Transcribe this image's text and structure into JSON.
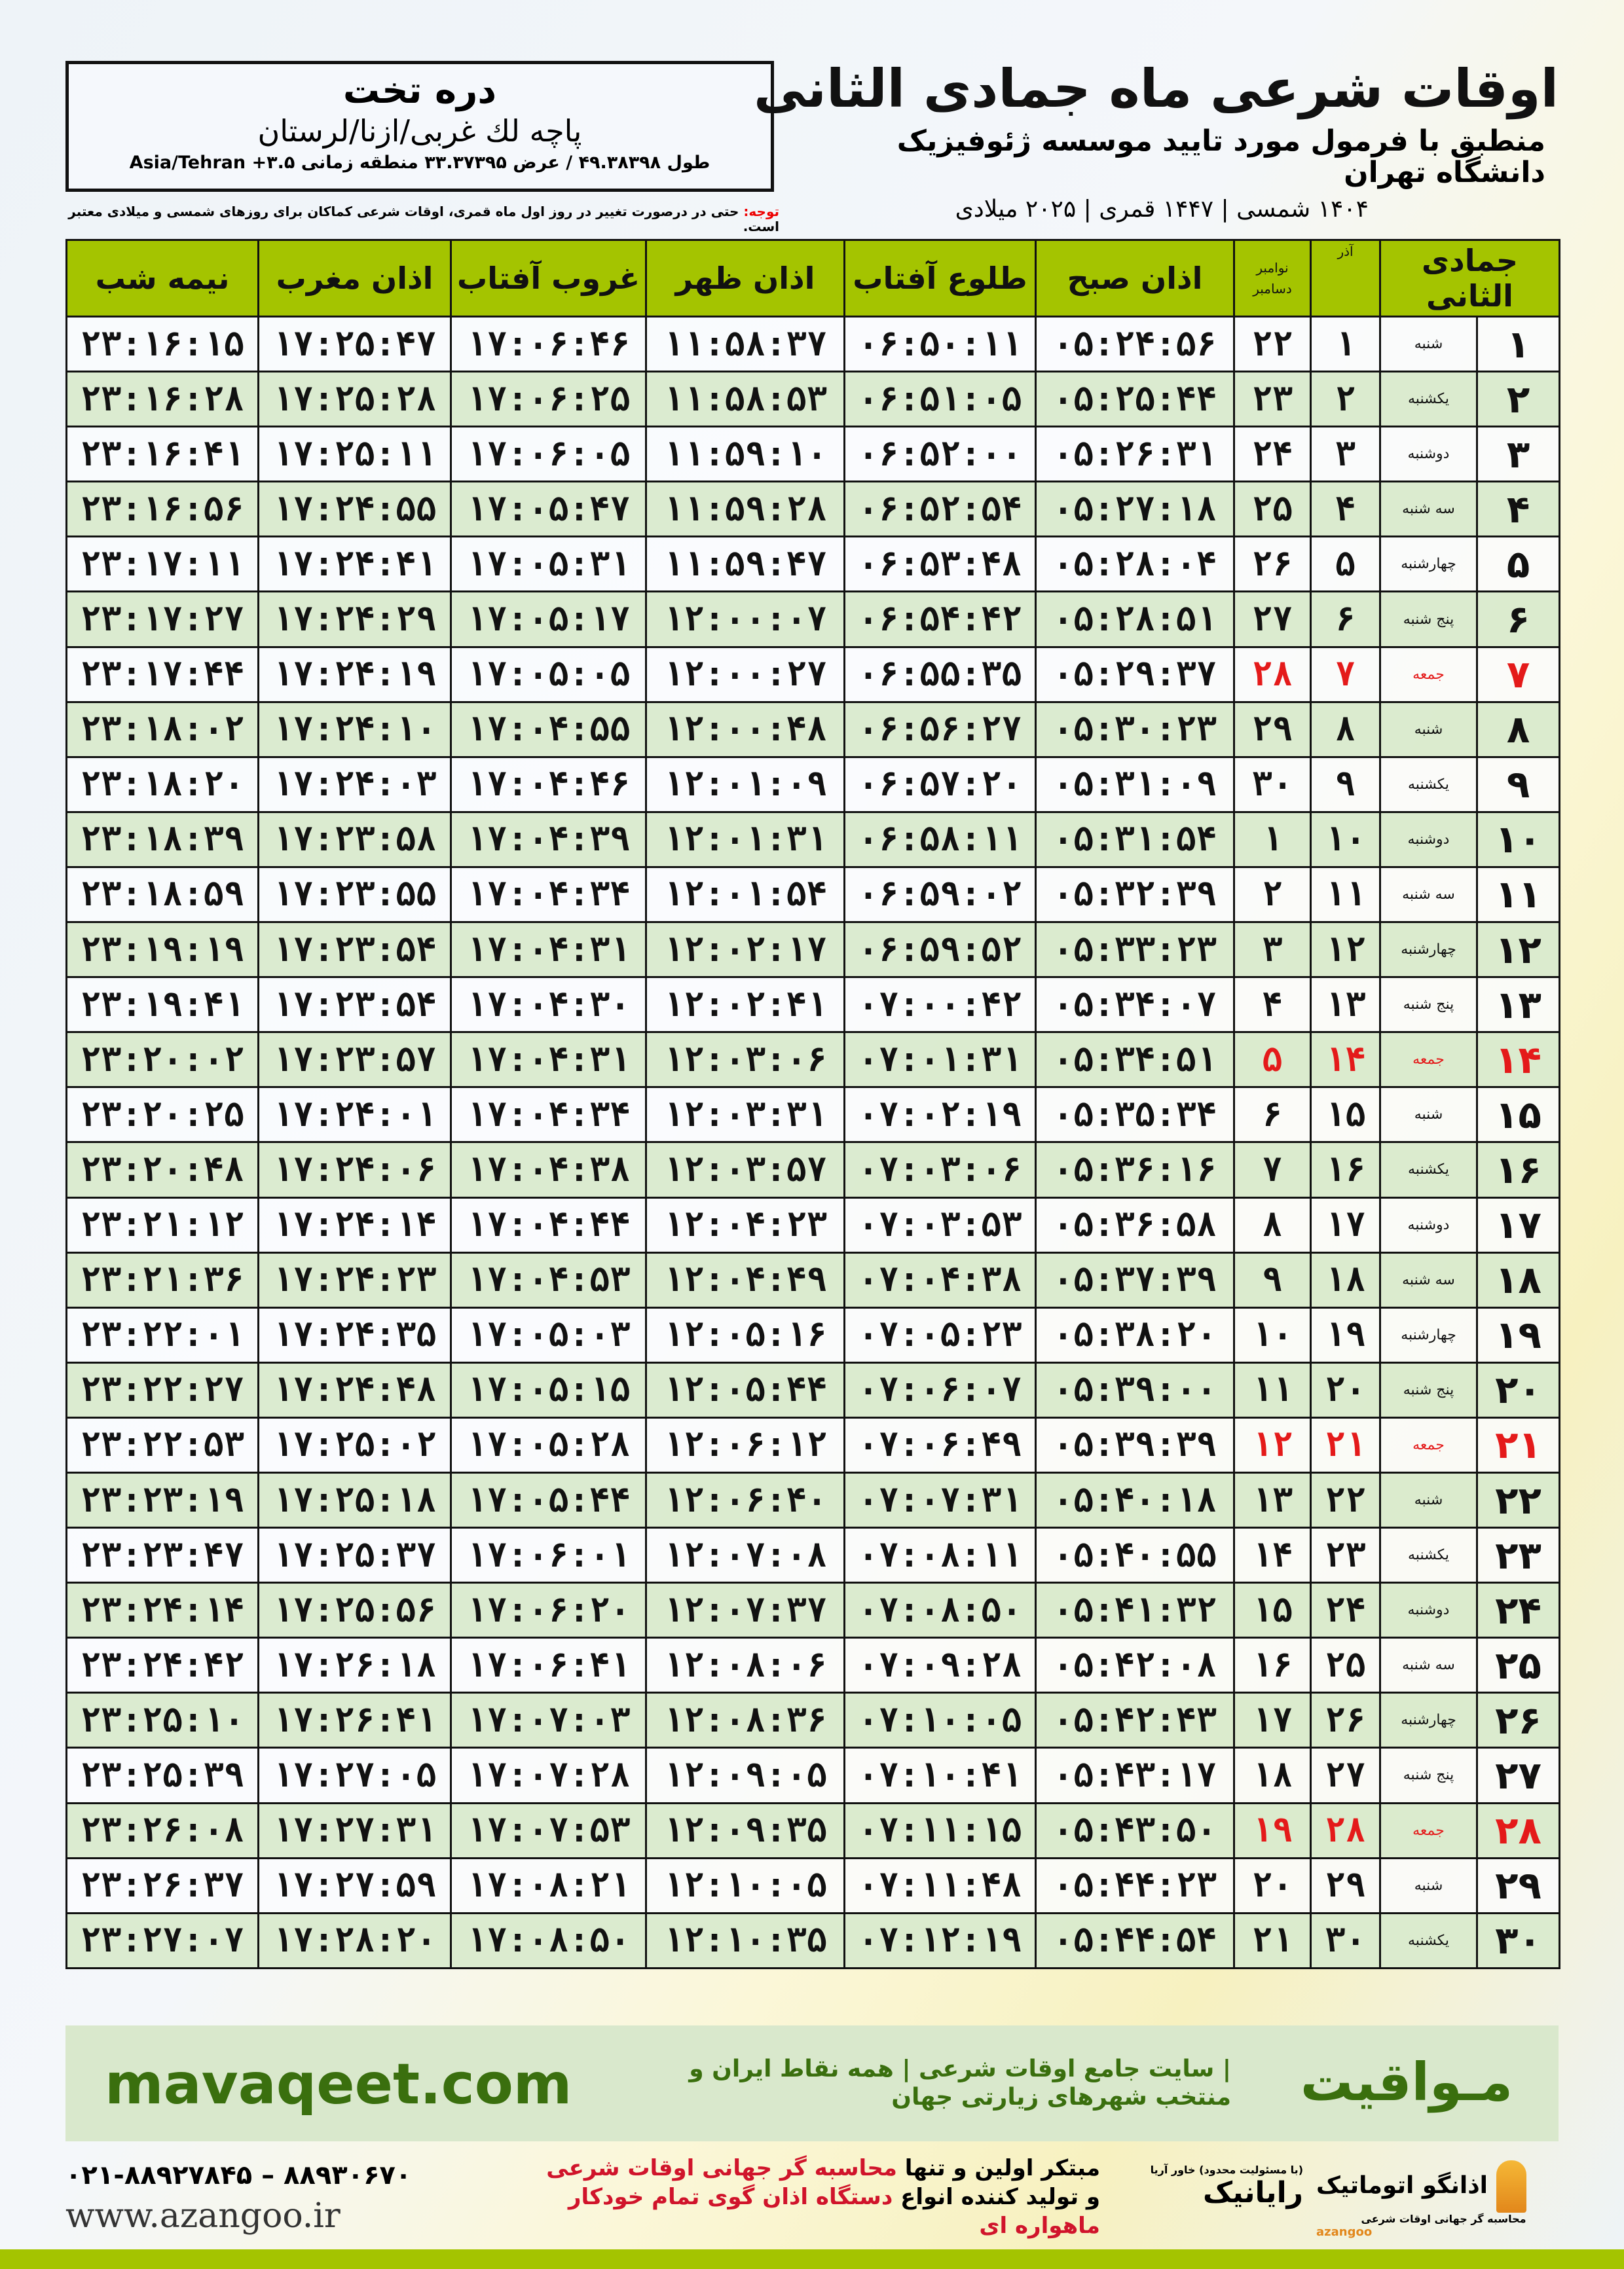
{
  "header": {
    "title": "اوقات شرعی ماه جمادی الثانی",
    "subtitle": "منطبق با فرمول مورد تایید موسسه ژئوفیزیک دانشگاه تهران",
    "years": "۱۴۰۴ شمسی | ۱۴۴۷ قمری | ۲۰۲۵ میلادی"
  },
  "location": {
    "city": "دره تخت",
    "region": "پاچه لك غربی/ازنا/لرستان",
    "coords": "طول ۴۹.۳۸۳۹۸ / عرض ۳۳.۳۷۳۹۵ منطقه زمانی ۳.۵+ Asia/Tehran"
  },
  "note": {
    "label": "توجه:",
    "text": " حتی در درصورت تغییر در روز اول ماه قمری، اوقات شرعی کماکان برای روزهای شمسی و میلادی معتبر است."
  },
  "colors": {
    "header_green": "#a4c400",
    "row_alt": "#d9eacd",
    "friday_red": "#e41a1a",
    "brand_green": "#3a6f0e"
  },
  "columns": [
    "جمادی الثانی",
    "آذر",
    "نوامبر",
    "دسامبر",
    "اذان صبح",
    "طلوع آفتاب",
    "اذان ظهر",
    "غروب آفتاب",
    "اذان مغرب",
    "نیمه شب"
  ],
  "rows": [
    [
      "۱",
      "شنبه",
      "۱",
      "۲۲",
      "۰۵:۲۴:۵۶",
      "۰۶:۵۰:۱۱",
      "۱۱:۵۸:۳۷",
      "۱۷:۰۶:۴۶",
      "۱۷:۲۵:۴۷",
      "۲۳:۱۶:۱۵"
    ],
    [
      "۲",
      "یکشنبه",
      "۲",
      "۲۳",
      "۰۵:۲۵:۴۴",
      "۰۶:۵۱:۰۵",
      "۱۱:۵۸:۵۳",
      "۱۷:۰۶:۲۵",
      "۱۷:۲۵:۲۸",
      "۲۳:۱۶:۲۸"
    ],
    [
      "۳",
      "دوشنبه",
      "۳",
      "۲۴",
      "۰۵:۲۶:۳۱",
      "۰۶:۵۲:۰۰",
      "۱۱:۵۹:۱۰",
      "۱۷:۰۶:۰۵",
      "۱۷:۲۵:۱۱",
      "۲۳:۱۶:۴۱"
    ],
    [
      "۴",
      "سه شنبه",
      "۴",
      "۲۵",
      "۰۵:۲۷:۱۸",
      "۰۶:۵۲:۵۴",
      "۱۱:۵۹:۲۸",
      "۱۷:۰۵:۴۷",
      "۱۷:۲۴:۵۵",
      "۲۳:۱۶:۵۶"
    ],
    [
      "۵",
      "چهارشنبه",
      "۵",
      "۲۶",
      "۰۵:۲۸:۰۴",
      "۰۶:۵۳:۴۸",
      "۱۱:۵۹:۴۷",
      "۱۷:۰۵:۳۱",
      "۱۷:۲۴:۴۱",
      "۲۳:۱۷:۱۱"
    ],
    [
      "۶",
      "پنج شنبه",
      "۶",
      "۲۷",
      "۰۵:۲۸:۵۱",
      "۰۶:۵۴:۴۲",
      "۱۲:۰۰:۰۷",
      "۱۷:۰۵:۱۷",
      "۱۷:۲۴:۲۹",
      "۲۳:۱۷:۲۷"
    ],
    [
      "۷",
      "جمعه",
      "۷",
      "۲۸",
      "۰۵:۲۹:۳۷",
      "۰۶:۵۵:۳۵",
      "۱۲:۰۰:۲۷",
      "۱۷:۰۵:۰۵",
      "۱۷:۲۴:۱۹",
      "۲۳:۱۷:۴۴"
    ],
    [
      "۸",
      "شنبه",
      "۸",
      "۲۹",
      "۰۵:۳۰:۲۳",
      "۰۶:۵۶:۲۷",
      "۱۲:۰۰:۴۸",
      "۱۷:۰۴:۵۵",
      "۱۷:۲۴:۱۰",
      "۲۳:۱۸:۰۲"
    ],
    [
      "۹",
      "یکشنبه",
      "۹",
      "۳۰",
      "۰۵:۳۱:۰۹",
      "۰۶:۵۷:۲۰",
      "۱۲:۰۱:۰۹",
      "۱۷:۰۴:۴۶",
      "۱۷:۲۴:۰۳",
      "۲۳:۱۸:۲۰"
    ],
    [
      "۱۰",
      "دوشنبه",
      "۱۰",
      "۱",
      "۰۵:۳۱:۵۴",
      "۰۶:۵۸:۱۱",
      "۱۲:۰۱:۳۱",
      "۱۷:۰۴:۳۹",
      "۱۷:۲۳:۵۸",
      "۲۳:۱۸:۳۹"
    ],
    [
      "۱۱",
      "سه شنبه",
      "۱۱",
      "۲",
      "۰۵:۳۲:۳۹",
      "۰۶:۵۹:۰۲",
      "۱۲:۰۱:۵۴",
      "۱۷:۰۴:۳۴",
      "۱۷:۲۳:۵۵",
      "۲۳:۱۸:۵۹"
    ],
    [
      "۱۲",
      "چهارشنبه",
      "۱۲",
      "۳",
      "۰۵:۳۳:۲۳",
      "۰۶:۵۹:۵۲",
      "۱۲:۰۲:۱۷",
      "۱۷:۰۴:۳۱",
      "۱۷:۲۳:۵۴",
      "۲۳:۱۹:۱۹"
    ],
    [
      "۱۳",
      "پنج شنبه",
      "۱۳",
      "۴",
      "۰۵:۳۴:۰۷",
      "۰۷:۰۰:۴۲",
      "۱۲:۰۲:۴۱",
      "۱۷:۰۴:۳۰",
      "۱۷:۲۳:۵۴",
      "۲۳:۱۹:۴۱"
    ],
    [
      "۱۴",
      "جمعه",
      "۱۴",
      "۵",
      "۰۵:۳۴:۵۱",
      "۰۷:۰۱:۳۱",
      "۱۲:۰۳:۰۶",
      "۱۷:۰۴:۳۱",
      "۱۷:۲۳:۵۷",
      "۲۳:۲۰:۰۲"
    ],
    [
      "۱۵",
      "شنبه",
      "۱۵",
      "۶",
      "۰۵:۳۵:۳۴",
      "۰۷:۰۲:۱۹",
      "۱۲:۰۳:۳۱",
      "۱۷:۰۴:۳۴",
      "۱۷:۲۴:۰۱",
      "۲۳:۲۰:۲۵"
    ],
    [
      "۱۶",
      "یکشنبه",
      "۱۶",
      "۷",
      "۰۵:۳۶:۱۶",
      "۰۷:۰۳:۰۶",
      "۱۲:۰۳:۵۷",
      "۱۷:۰۴:۳۸",
      "۱۷:۲۴:۰۶",
      "۲۳:۲۰:۴۸"
    ],
    [
      "۱۷",
      "دوشنبه",
      "۱۷",
      "۸",
      "۰۵:۳۶:۵۸",
      "۰۷:۰۳:۵۳",
      "۱۲:۰۴:۲۳",
      "۱۷:۰۴:۴۴",
      "۱۷:۲۴:۱۴",
      "۲۳:۲۱:۱۲"
    ],
    [
      "۱۸",
      "سه شنبه",
      "۱۸",
      "۹",
      "۰۵:۳۷:۳۹",
      "۰۷:۰۴:۳۸",
      "۱۲:۰۴:۴۹",
      "۱۷:۰۴:۵۳",
      "۱۷:۲۴:۲۳",
      "۲۳:۲۱:۳۶"
    ],
    [
      "۱۹",
      "چهارشنبه",
      "۱۹",
      "۱۰",
      "۰۵:۳۸:۲۰",
      "۰۷:۰۵:۲۳",
      "۱۲:۰۵:۱۶",
      "۱۷:۰۵:۰۳",
      "۱۷:۲۴:۳۵",
      "۲۳:۲۲:۰۱"
    ],
    [
      "۲۰",
      "پنج شنبه",
      "۲۰",
      "۱۱",
      "۰۵:۳۹:۰۰",
      "۰۷:۰۶:۰۷",
      "۱۲:۰۵:۴۴",
      "۱۷:۰۵:۱۵",
      "۱۷:۲۴:۴۸",
      "۲۳:۲۲:۲۷"
    ],
    [
      "۲۱",
      "جمعه",
      "۲۱",
      "۱۲",
      "۰۵:۳۹:۳۹",
      "۰۷:۰۶:۴۹",
      "۱۲:۰۶:۱۲",
      "۱۷:۰۵:۲۸",
      "۱۷:۲۵:۰۲",
      "۲۳:۲۲:۵۳"
    ],
    [
      "۲۲",
      "شنبه",
      "۲۲",
      "۱۳",
      "۰۵:۴۰:۱۸",
      "۰۷:۰۷:۳۱",
      "۱۲:۰۶:۴۰",
      "۱۷:۰۵:۴۴",
      "۱۷:۲۵:۱۸",
      "۲۳:۲۳:۱۹"
    ],
    [
      "۲۳",
      "یکشنبه",
      "۲۳",
      "۱۴",
      "۰۵:۴۰:۵۵",
      "۰۷:۰۸:۱۱",
      "۱۲:۰۷:۰۸",
      "۱۷:۰۶:۰۱",
      "۱۷:۲۵:۳۷",
      "۲۳:۲۳:۴۷"
    ],
    [
      "۲۴",
      "دوشنبه",
      "۲۴",
      "۱۵",
      "۰۵:۴۱:۳۲",
      "۰۷:۰۸:۵۰",
      "۱۲:۰۷:۳۷",
      "۱۷:۰۶:۲۰",
      "۱۷:۲۵:۵۶",
      "۲۳:۲۴:۱۴"
    ],
    [
      "۲۵",
      "سه شنبه",
      "۲۵",
      "۱۶",
      "۰۵:۴۲:۰۸",
      "۰۷:۰۹:۲۸",
      "۱۲:۰۸:۰۶",
      "۱۷:۰۶:۴۱",
      "۱۷:۲۶:۱۸",
      "۲۳:۲۴:۴۲"
    ],
    [
      "۲۶",
      "چهارشنبه",
      "۲۶",
      "۱۷",
      "۰۵:۴۲:۴۳",
      "۰۷:۱۰:۰۵",
      "۱۲:۰۸:۳۶",
      "۱۷:۰۷:۰۳",
      "۱۷:۲۶:۴۱",
      "۲۳:۲۵:۱۰"
    ],
    [
      "۲۷",
      "پنج شنبه",
      "۲۷",
      "۱۸",
      "۰۵:۴۳:۱۷",
      "۰۷:۱۰:۴۱",
      "۱۲:۰۹:۰۵",
      "۱۷:۰۷:۲۸",
      "۱۷:۲۷:۰۵",
      "۲۳:۲۵:۳۹"
    ],
    [
      "۲۸",
      "جمعه",
      "۲۸",
      "۱۹",
      "۰۵:۴۳:۵۰",
      "۰۷:۱۱:۱۵",
      "۱۲:۰۹:۳۵",
      "۱۷:۰۷:۵۳",
      "۱۷:۲۷:۳۱",
      "۲۳:۲۶:۰۸"
    ],
    [
      "۲۹",
      "شنبه",
      "۲۹",
      "۲۰",
      "۰۵:۴۴:۲۳",
      "۰۷:۱۱:۴۸",
      "۱۲:۱۰:۰۵",
      "۱۷:۰۸:۲۱",
      "۱۷:۲۷:۵۹",
      "۲۳:۲۶:۳۷"
    ],
    [
      "۳۰",
      "یکشنبه",
      "۳۰",
      "۲۱",
      "۰۵:۴۴:۵۴",
      "۰۷:۱۲:۱۹",
      "۱۲:۱۰:۳۵",
      "۱۷:۰۸:۵۰",
      "۱۷:۲۸:۲۰",
      "۲۳:۲۷:۰۷"
    ]
  ],
  "footer": {
    "brand": "مـواقیت",
    "slogan": "| سایت جامع اوقات شرعی | همه نقاط ایران و منتخب شهرهای زیارتی جهان",
    "url": "mavaqeet.com",
    "promo_1a": "مبتکر اولین و تنها ",
    "promo_1b": "محاسبه گر جهانی اوقات شرعی",
    "promo_2a": "و تولید کننده انواع ",
    "promo_2b": "دستگاه اذان گوی تمام خودکار ماهواره ای",
    "phone": "۰۲۱-۸۸۹۲۷۸۴۵ – ۸۸۹۳۰۶۷۰",
    "website": "www.azangoo.ir",
    "logo_rayanik": "رایانیک",
    "logo_rayanik_sub": "(با مسئولیت محدود) خاور آریا",
    "logo_azangoo": "اذانگو اتوماتیک",
    "logo_azangoo_sub": "محاسبه گر جهانی اوقات شرعی",
    "logo_azangoo_en": "azangoo"
  }
}
